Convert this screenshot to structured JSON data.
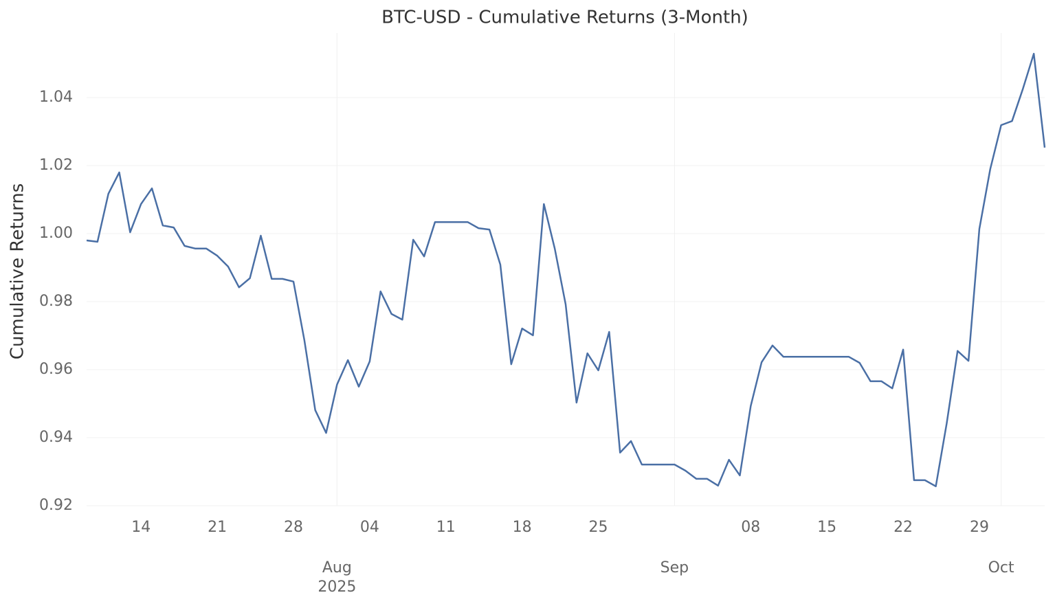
{
  "chart_data": {
    "type": "line",
    "title": "BTC-USD - Cumulative Returns (3-Month)",
    "y_label": "Cumulative Returns",
    "x": [
      "2025-07-09",
      "2025-07-10",
      "2025-07-11",
      "2025-07-12",
      "2025-07-13",
      "2025-07-14",
      "2025-07-15",
      "2025-07-16",
      "2025-07-17",
      "2025-07-18",
      "2025-07-19",
      "2025-07-20",
      "2025-07-21",
      "2025-07-22",
      "2025-07-23",
      "2025-07-24",
      "2025-07-25",
      "2025-07-26",
      "2025-07-27",
      "2025-07-28",
      "2025-07-29",
      "2025-07-30",
      "2025-07-31",
      "2025-08-01",
      "2025-08-02",
      "2025-08-03",
      "2025-08-04",
      "2025-08-05",
      "2025-08-06",
      "2025-08-07",
      "2025-08-08",
      "2025-08-09",
      "2025-08-10",
      "2025-08-11",
      "2025-08-12",
      "2025-08-13",
      "2025-08-14",
      "2025-08-15",
      "2025-08-16",
      "2025-08-17",
      "2025-08-18",
      "2025-08-19",
      "2025-08-20",
      "2025-08-21",
      "2025-08-22",
      "2025-08-23",
      "2025-08-24",
      "2025-08-25",
      "2025-08-26",
      "2025-08-27",
      "2025-08-28",
      "2025-08-29",
      "2025-08-30",
      "2025-08-31",
      "2025-09-01",
      "2025-09-02",
      "2025-09-03",
      "2025-09-04",
      "2025-09-05",
      "2025-09-06",
      "2025-09-07",
      "2025-09-08",
      "2025-09-09",
      "2025-09-10",
      "2025-09-11",
      "2025-09-12",
      "2025-09-13",
      "2025-09-14",
      "2025-09-15",
      "2025-09-16",
      "2025-09-17",
      "2025-09-18",
      "2025-09-19",
      "2025-09-20",
      "2025-09-21",
      "2025-09-22",
      "2025-09-23",
      "2025-09-24",
      "2025-09-25",
      "2025-09-26",
      "2025-09-27",
      "2025-09-28",
      "2025-09-29",
      "2025-09-30",
      "2025-10-01",
      "2025-10-02",
      "2025-10-03",
      "2025-10-04",
      "2025-10-05"
    ],
    "series": [
      {
        "name": "BTC-USD",
        "color": "#4a6fa5",
        "values": [
          0.998,
          0.9976,
          1.0117,
          1.018,
          1.0004,
          1.0087,
          1.0133,
          1.0024,
          1.0018,
          0.9964,
          0.9956,
          0.9956,
          0.9935,
          0.9903,
          0.9842,
          0.9869,
          0.9994,
          0.9867,
          0.9867,
          0.9859,
          0.9687,
          0.9481,
          0.9414,
          0.9556,
          0.9628,
          0.955,
          0.9624,
          0.983,
          0.9764,
          0.9747,
          0.9982,
          0.9933,
          1.0034,
          1.0034,
          1.0034,
          1.0034,
          1.0016,
          1.0012,
          0.9909,
          0.9616,
          0.9721,
          0.9701,
          1.0087,
          0.9956,
          0.9792,
          0.9503,
          0.9648,
          0.9598,
          0.9711,
          0.9356,
          0.939,
          0.9321,
          0.9321,
          0.9321,
          0.9321,
          0.9303,
          0.9279,
          0.9279,
          0.9259,
          0.9335,
          0.9289,
          0.9493,
          0.9622,
          0.9671,
          0.9638,
          0.9638,
          0.9638,
          0.9638,
          0.9638,
          0.9638,
          0.9638,
          0.962,
          0.9566,
          0.9566,
          0.9545,
          0.9659,
          0.9275,
          0.9275,
          0.9257,
          0.9442,
          0.9655,
          0.9626,
          1.0014,
          1.019,
          1.0319,
          1.0331,
          1.0426,
          1.0529,
          1.0253
        ]
      }
    ],
    "xlim": [
      "2025-07-09",
      "2025-10-05"
    ],
    "xticks": [
      {
        "value": "2025-07-14",
        "label": "14"
      },
      {
        "value": "2025-07-21",
        "label": "21"
      },
      {
        "value": "2025-07-28",
        "label": "28"
      },
      {
        "value": "2025-08-04",
        "label": "04"
      },
      {
        "value": "2025-08-11",
        "label": "11"
      },
      {
        "value": "2025-08-18",
        "label": "18"
      },
      {
        "value": "2025-08-25",
        "label": "25"
      },
      {
        "value": "2025-09-08",
        "label": "08"
      },
      {
        "value": "2025-09-15",
        "label": "15"
      },
      {
        "value": "2025-09-22",
        "label": "22"
      },
      {
        "value": "2025-09-29",
        "label": "29"
      }
    ],
    "xticks_major": [
      {
        "value": "2025-08-01",
        "label": "Aug"
      },
      {
        "value": "2025-09-01",
        "label": "Sep"
      },
      {
        "value": "2025-10-01",
        "label": "Oct"
      }
    ],
    "year_label": "2025",
    "ylim": [
      0.92,
      1.059
    ],
    "yticks": [
      {
        "value": 0.92,
        "label": "0.92"
      },
      {
        "value": 0.94,
        "label": "0.94"
      },
      {
        "value": 0.96,
        "label": "0.96"
      },
      {
        "value": 0.98,
        "label": "0.98"
      },
      {
        "value": 1.0,
        "label": "1.00"
      },
      {
        "value": 1.02,
        "label": "1.02"
      },
      {
        "value": 1.04,
        "label": "1.04"
      }
    ],
    "grid": true
  }
}
